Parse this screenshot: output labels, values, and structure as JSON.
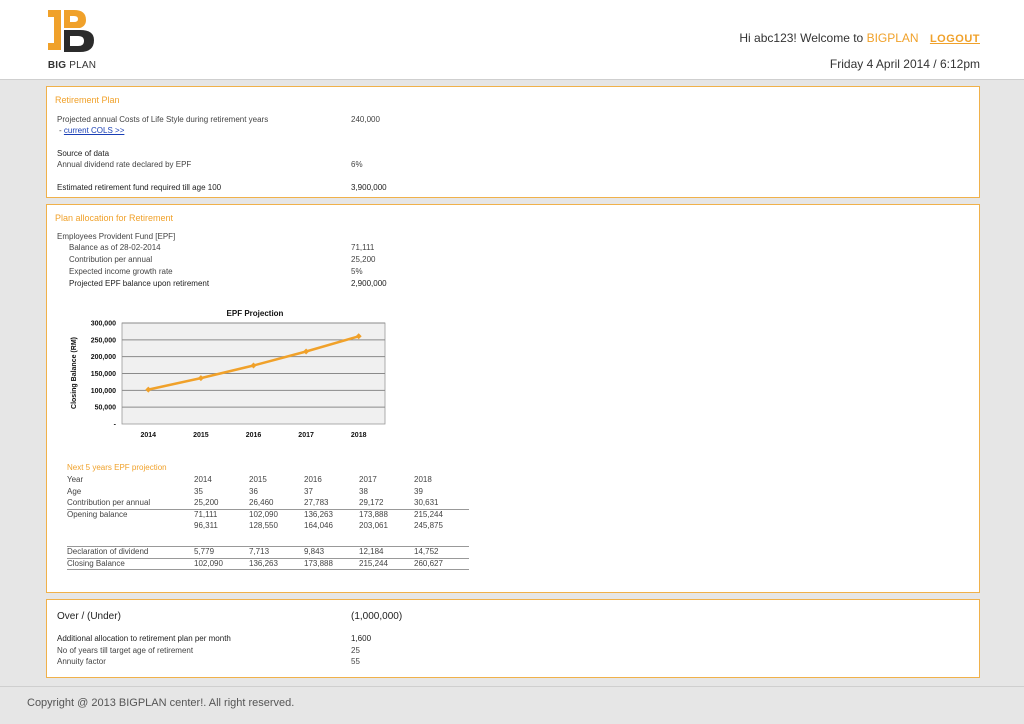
{
  "header": {
    "logo_bold": "BIG",
    "logo_light": "PLAN",
    "welcome_prefix": "Hi abc123! Welcome to",
    "brand": "BIGPLAN",
    "logout_label": "LOGOUT",
    "date": "Friday 4 April 2014 / 6:12pm",
    "brand_color": "#f0a12a"
  },
  "retirement": {
    "title": "Retirement Plan",
    "cols_label": "Projected annual Costs of Life Style during retirement years",
    "cols_value": "240,000",
    "current_cols_prefix": "- ",
    "current_cols_link": "current COLS >>",
    "source_label": "Source of data",
    "dividend_label": "Annual dividend rate declared by EPF",
    "dividend_value": "6%",
    "fund_label": "Estimated retirement fund required till age 100",
    "fund_value": "3,900,000"
  },
  "allocation": {
    "title": "Plan allocation for Retirement",
    "epf_label": "Employees Provident Fund [EPF]",
    "items": [
      {
        "label": "Balance as of 28-02-2014",
        "value": "71,111"
      },
      {
        "label": "Contribution per annual",
        "value": "25,200"
      },
      {
        "label": "Expected income growth rate",
        "value": "5%"
      },
      {
        "label": "Projected EPF balance upon retirement",
        "value": "2,900,000"
      }
    ],
    "projection_title": "Next 5 years EPF projection",
    "table": {
      "rows": [
        {
          "label": "Year",
          "values": [
            "2014",
            "2015",
            "2016",
            "2017",
            "2018"
          ]
        },
        {
          "label": "Age",
          "values": [
            "35",
            "36",
            "37",
            "38",
            "39"
          ]
        },
        {
          "label": "Contribution per annual",
          "values": [
            "25,200",
            "26,460",
            "27,783",
            "29,172",
            "30,631"
          ]
        },
        {
          "label": "Opening balance",
          "values": [
            "71,111",
            "102,090",
            "136,263",
            "173,888",
            "215,244"
          ]
        },
        {
          "label": "",
          "values": [
            "96,311",
            "128,550",
            "164,046",
            "203,061",
            "245,875"
          ]
        },
        {
          "label": "Declaration of dividend",
          "values": [
            "5,779",
            "7,713",
            "9,843",
            "12,184",
            "14,752"
          ]
        },
        {
          "label": "Closing Balance",
          "values": [
            "102,090",
            "136,263",
            "173,888",
            "215,244",
            "260,627"
          ]
        }
      ]
    }
  },
  "chart_data": {
    "type": "line",
    "title": "EPF Projection",
    "xlabel": "",
    "ylabel": "Closing Balance (RM)",
    "categories": [
      "2014",
      "2015",
      "2016",
      "2017",
      "2018"
    ],
    "values": [
      102090,
      136263,
      173888,
      215244,
      260627
    ],
    "ylim": [
      0,
      300000
    ],
    "yticks": [
      "-",
      "50,000",
      "100,000",
      "150,000",
      "200,000",
      "250,000",
      "300,000"
    ],
    "grid": true,
    "legend": "none",
    "line_color": "#f0a12a",
    "plot_bg": "#f0f0f0"
  },
  "summary": {
    "over_label": "Over / (Under)",
    "over_value": "(1,000,000)",
    "additional_label": "Additional allocation to retirement plan per month",
    "additional_value": "1,600",
    "years_label": "No of years till target age of retirement",
    "years_value": "25",
    "annuity_label": "Annuity factor",
    "annuity_value": "55"
  },
  "footer": {
    "copyright": "Copyright @ 2013 BIGPLAN center!. All right reserved."
  }
}
